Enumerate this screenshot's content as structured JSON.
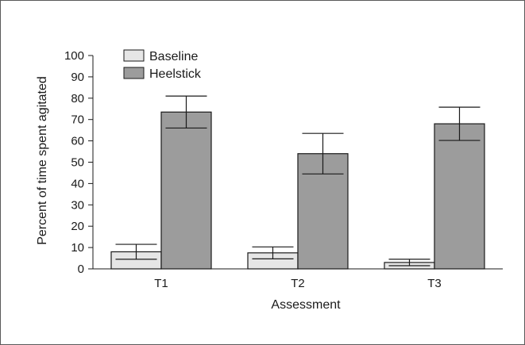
{
  "chart_data": {
    "type": "bar",
    "categories": [
      "T1",
      "T2",
      "T3"
    ],
    "series": [
      {
        "name": "Baseline",
        "values": [
          8,
          7.5,
          3
        ],
        "errors": [
          3.5,
          2.8,
          1.5
        ],
        "color": "#e6e6e6"
      },
      {
        "name": "Heelstick",
        "values": [
          73.5,
          54,
          68
        ],
        "errors": [
          7.5,
          9.5,
          7.8
        ],
        "color": "#9c9c9c"
      }
    ],
    "xlabel": "Assessment",
    "ylabel": "Percent of time spent agitated",
    "ylim": [
      0,
      100
    ],
    "yticks": [
      0,
      10,
      20,
      30,
      40,
      50,
      60,
      70,
      80,
      90,
      100
    ],
    "legend_position": "top-left",
    "grid": false
  }
}
